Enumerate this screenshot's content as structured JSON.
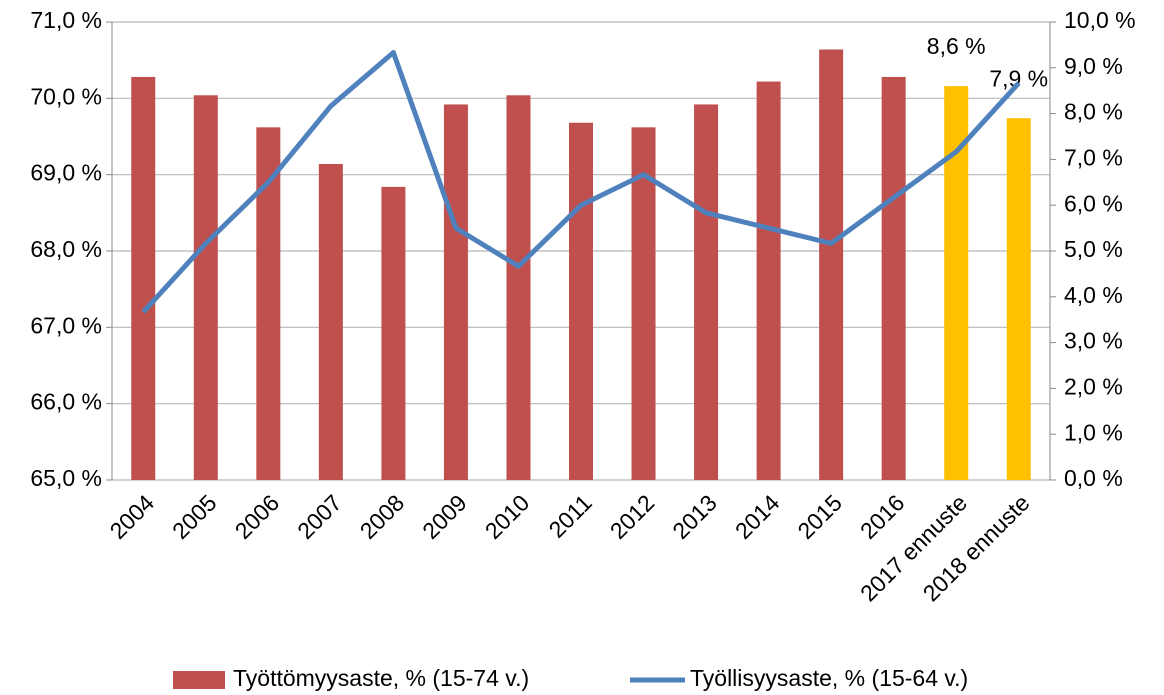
{
  "chart_data": {
    "type": "bar_line",
    "categories": [
      "2004",
      "2005",
      "2006",
      "2007",
      "2008",
      "2009",
      "2010",
      "2011",
      "2012",
      "2013",
      "2014",
      "2015",
      "2016",
      "2017 ennuste",
      "2018 ennuste"
    ],
    "series": [
      {
        "name": "Työttömyysaste, % (15-74 v.)",
        "type": "bar",
        "axis": "y2",
        "color": "#c0504d",
        "colors": [
          "#c0504d",
          "#c0504d",
          "#c0504d",
          "#c0504d",
          "#c0504d",
          "#c0504d",
          "#c0504d",
          "#c0504d",
          "#c0504d",
          "#c0504d",
          "#c0504d",
          "#c0504d",
          "#c0504d",
          "#ffc000",
          "#ffc000"
        ],
        "values": [
          8.8,
          8.4,
          7.7,
          6.9,
          6.4,
          8.2,
          8.4,
          7.8,
          7.7,
          8.2,
          8.7,
          9.4,
          8.8,
          8.6,
          7.9
        ],
        "value_labels": [
          null,
          null,
          null,
          null,
          null,
          null,
          null,
          null,
          null,
          null,
          null,
          null,
          null,
          "8,6 %",
          "7,9 %"
        ]
      },
      {
        "name": "Työllisyysaste, % (15-64 v.)",
        "type": "line",
        "color": "#4f81bd",
        "values": [
          67.2,
          68.1,
          68.9,
          69.9,
          70.6,
          68.3,
          67.8,
          68.6,
          69.0,
          68.5,
          68.3,
          68.1,
          68.7,
          69.3,
          70.2
        ]
      }
    ],
    "ylim": [
      65,
      71
    ],
    "yticks": [
      {
        "value": 65,
        "label": "65,0 %"
      },
      {
        "value": 66,
        "label": "66,0 %"
      },
      {
        "value": 67,
        "label": "67,0 %"
      },
      {
        "value": 68,
        "label": "68,0 %"
      },
      {
        "value": 69,
        "label": "69,0 %"
      },
      {
        "value": 70,
        "label": "70,0 %"
      },
      {
        "value": 71,
        "label": "71,0 %"
      }
    ],
    "y2lim": [
      0,
      10
    ],
    "y2ticks": [
      {
        "value": 0,
        "label": "0,0 %"
      },
      {
        "value": 1,
        "label": "1,0 %"
      },
      {
        "value": 2,
        "label": "2,0 %"
      },
      {
        "value": 3,
        "label": "3,0 %"
      },
      {
        "value": 4,
        "label": "4,0 %"
      },
      {
        "value": 5,
        "label": "5,0 %"
      },
      {
        "value": 6,
        "label": "6,0 %"
      },
      {
        "value": 7,
        "label": "7,0 %"
      },
      {
        "value": 8,
        "label": "8,0 %"
      },
      {
        "value": 9,
        "label": "9,0 %"
      },
      {
        "value": 10,
        "label": "10,0 %"
      }
    ],
    "grid": true,
    "legend": "bottom"
  }
}
